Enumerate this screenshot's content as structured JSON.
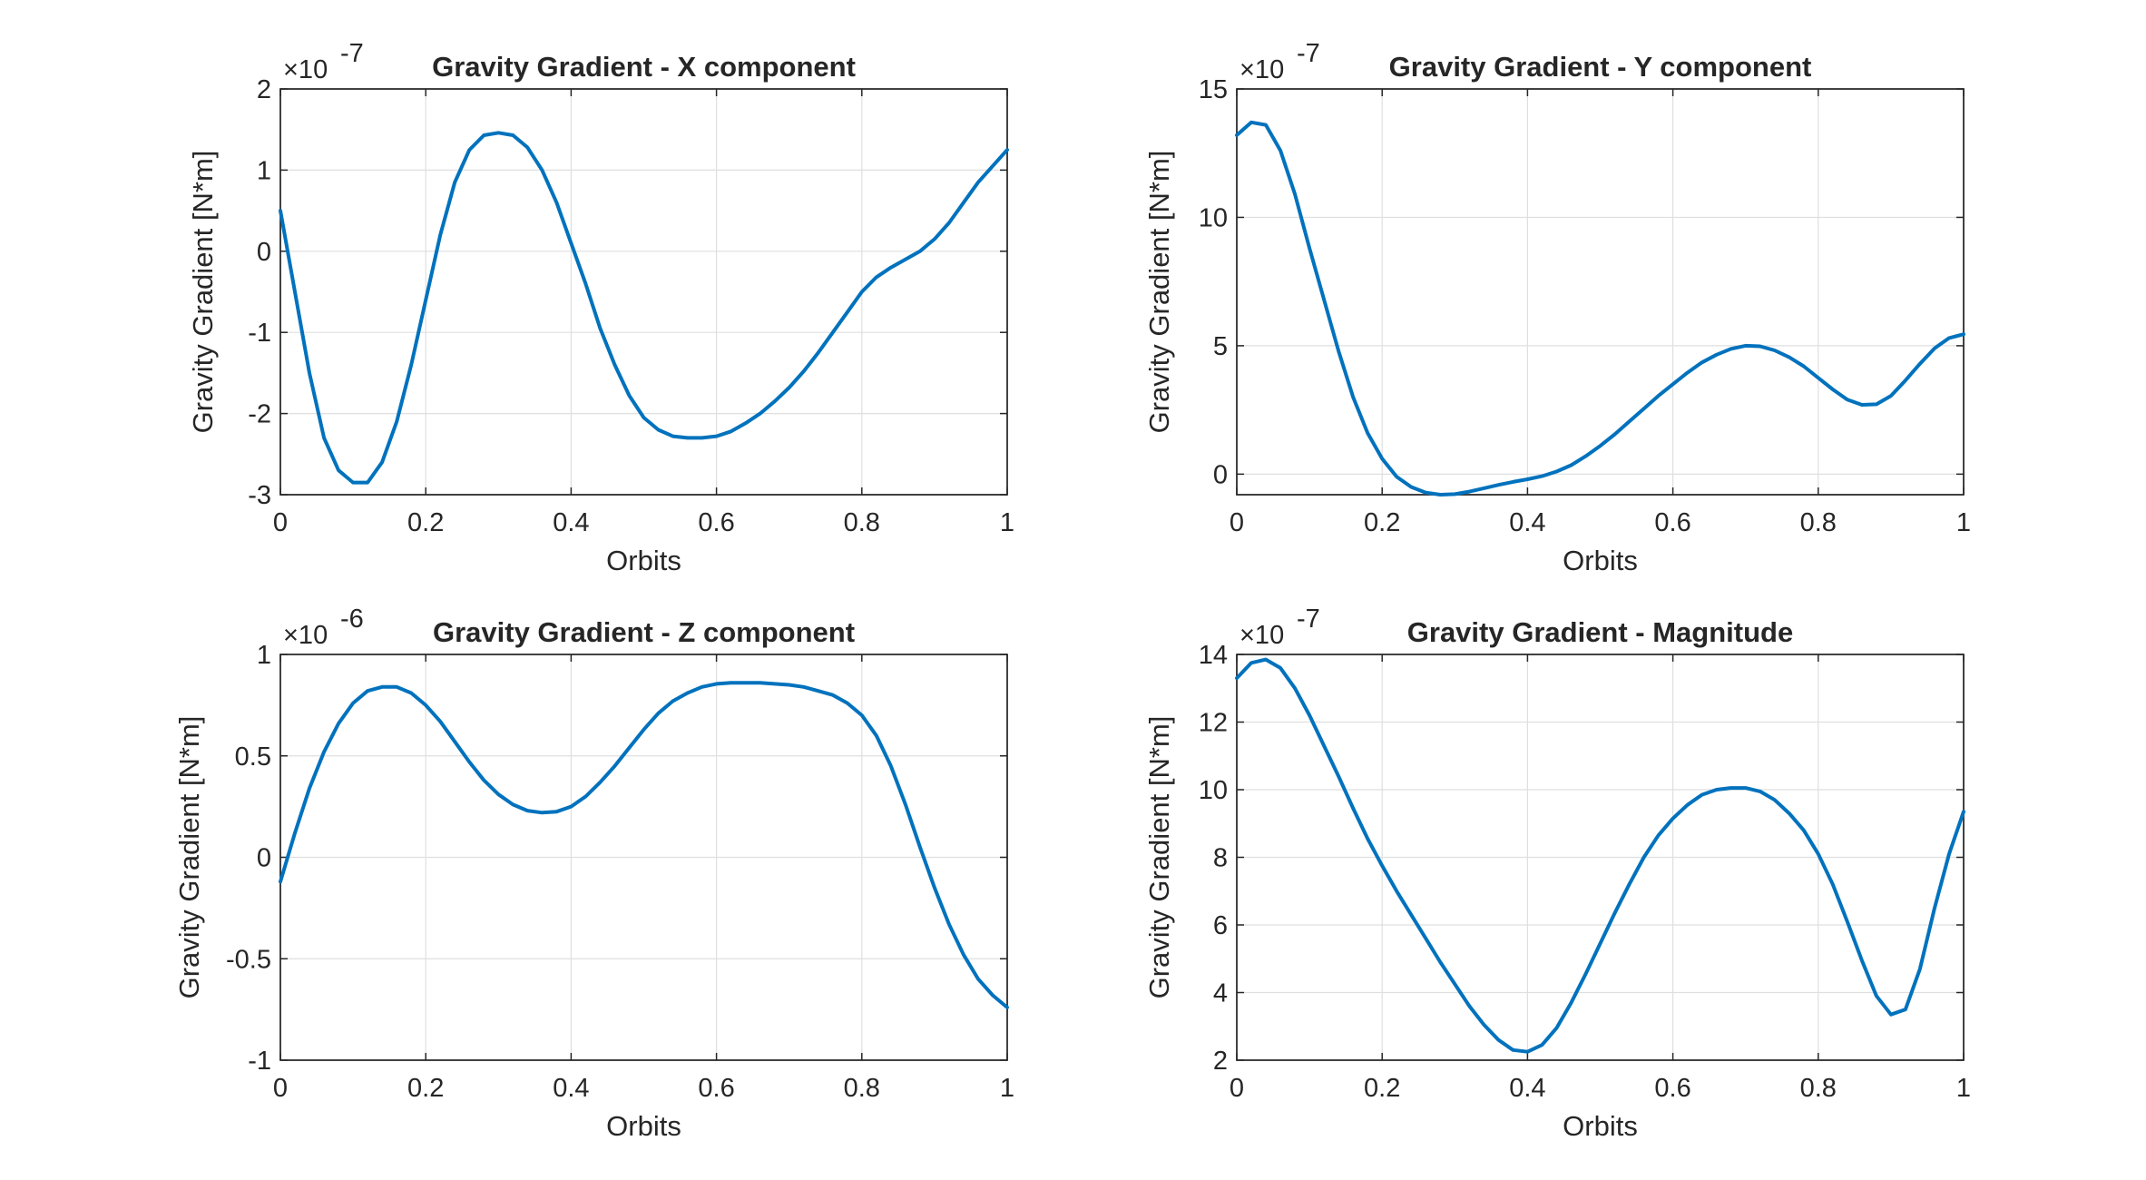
{
  "figure": {
    "background": "#ffffff",
    "line_color": "#0072BD",
    "grid_color": "#dfdfdf",
    "axis_color": "#262626"
  },
  "chart_data": [
    {
      "type": "line",
      "title": "Gravity Gradient - X component",
      "xlabel": "Orbits",
      "ylabel": "Gravity Gradient [N*m]",
      "exponent_label": "×10",
      "exponent_power": "-7",
      "xlim": [
        0,
        1
      ],
      "ylim": [
        -3,
        2
      ],
      "xticks": [
        0,
        0.2,
        0.4,
        0.6,
        0.8,
        1
      ],
      "xtick_labels": [
        "0",
        "0.2",
        "0.4",
        "0.6",
        "0.8",
        "1"
      ],
      "yticks": [
        -3,
        -2,
        -1,
        0,
        1,
        2
      ],
      "ytick_labels": [
        "-3",
        "-2",
        "-1",
        "0",
        "1",
        "2"
      ],
      "grid": true,
      "series": [
        {
          "x": [
            0,
            0.02,
            0.04,
            0.06,
            0.08,
            0.1,
            0.12,
            0.14,
            0.16,
            0.18,
            0.2,
            0.22,
            0.24,
            0.26,
            0.28,
            0.3,
            0.32,
            0.34,
            0.36,
            0.38,
            0.4,
            0.42,
            0.44,
            0.46,
            0.48,
            0.5,
            0.52,
            0.54,
            0.56,
            0.58,
            0.6,
            0.62,
            0.64,
            0.66,
            0.68,
            0.7,
            0.72,
            0.74,
            0.76,
            0.78,
            0.8,
            0.82,
            0.84,
            0.86,
            0.88,
            0.9,
            0.92,
            0.94,
            0.96,
            0.98,
            1.0
          ],
          "y": [
            0.5,
            -0.5,
            -1.5,
            -2.3,
            -2.7,
            -2.85,
            -2.85,
            -2.6,
            -2.1,
            -1.4,
            -0.6,
            0.2,
            0.85,
            1.25,
            1.43,
            1.46,
            1.43,
            1.28,
            1.0,
            0.6,
            0.1,
            -0.4,
            -0.95,
            -1.4,
            -1.78,
            -2.05,
            -2.2,
            -2.28,
            -2.3,
            -2.3,
            -2.28,
            -2.22,
            -2.12,
            -2.0,
            -1.85,
            -1.68,
            -1.48,
            -1.25,
            -1.0,
            -0.75,
            -0.5,
            -0.32,
            -0.2,
            -0.1,
            0.0,
            0.15,
            0.35,
            0.6,
            0.85,
            1.05,
            1.25
          ]
        }
      ]
    },
    {
      "type": "line",
      "title": "Gravity Gradient - Y component",
      "xlabel": "Orbits",
      "ylabel": "Gravity Gradient [N*m]",
      "exponent_label": "×10",
      "exponent_power": "-7",
      "xlim": [
        0,
        1
      ],
      "ylim": [
        -0.8,
        15
      ],
      "xticks": [
        0,
        0.2,
        0.4,
        0.6,
        0.8,
        1
      ],
      "xtick_labels": [
        "0",
        "0.2",
        "0.4",
        "0.6",
        "0.8",
        "1"
      ],
      "yticks": [
        0,
        5,
        10,
        15
      ],
      "ytick_labels": [
        "0",
        "5",
        "10",
        "15"
      ],
      "grid": true,
      "series": [
        {
          "x": [
            0,
            0.02,
            0.04,
            0.06,
            0.08,
            0.1,
            0.12,
            0.14,
            0.16,
            0.18,
            0.2,
            0.22,
            0.24,
            0.26,
            0.28,
            0.3,
            0.32,
            0.34,
            0.36,
            0.38,
            0.4,
            0.42,
            0.44,
            0.46,
            0.48,
            0.5,
            0.52,
            0.54,
            0.56,
            0.58,
            0.6,
            0.62,
            0.64,
            0.66,
            0.68,
            0.7,
            0.72,
            0.74,
            0.76,
            0.78,
            0.8,
            0.82,
            0.84,
            0.86,
            0.88,
            0.9,
            0.92,
            0.94,
            0.96,
            0.98,
            1.0
          ],
          "y": [
            13.2,
            13.7,
            13.6,
            12.6,
            10.9,
            8.8,
            6.8,
            4.8,
            3.0,
            1.6,
            0.6,
            -0.1,
            -0.5,
            -0.72,
            -0.8,
            -0.78,
            -0.68,
            -0.55,
            -0.42,
            -0.3,
            -0.2,
            -0.08,
            0.1,
            0.35,
            0.7,
            1.1,
            1.55,
            2.05,
            2.55,
            3.05,
            3.5,
            3.95,
            4.35,
            4.65,
            4.88,
            5.0,
            4.98,
            4.82,
            4.55,
            4.2,
            3.75,
            3.3,
            2.9,
            2.7,
            2.72,
            3.05,
            3.65,
            4.3,
            4.9,
            5.3,
            5.45
          ]
        }
      ]
    },
    {
      "type": "line",
      "title": "Gravity Gradient - Z component",
      "xlabel": "Orbits",
      "ylabel": "Gravity Gradient [N*m]",
      "exponent_label": "×10",
      "exponent_power": "-6",
      "xlim": [
        0,
        1
      ],
      "ylim": [
        -1,
        1
      ],
      "xticks": [
        0,
        0.2,
        0.4,
        0.6,
        0.8,
        1
      ],
      "xtick_labels": [
        "0",
        "0.2",
        "0.4",
        "0.6",
        "0.8",
        "1"
      ],
      "yticks": [
        -1,
        -0.5,
        0,
        0.5,
        1
      ],
      "ytick_labels": [
        "-1",
        "-0.5",
        "0",
        "0.5",
        "1"
      ],
      "grid": true,
      "series": [
        {
          "x": [
            0,
            0.02,
            0.04,
            0.06,
            0.08,
            0.1,
            0.12,
            0.14,
            0.16,
            0.18,
            0.2,
            0.22,
            0.24,
            0.26,
            0.28,
            0.3,
            0.32,
            0.34,
            0.36,
            0.38,
            0.4,
            0.42,
            0.44,
            0.46,
            0.48,
            0.5,
            0.52,
            0.54,
            0.56,
            0.58,
            0.6,
            0.62,
            0.64,
            0.66,
            0.68,
            0.7,
            0.72,
            0.74,
            0.76,
            0.78,
            0.8,
            0.82,
            0.84,
            0.86,
            0.88,
            0.9,
            0.92,
            0.94,
            0.96,
            0.98,
            1.0
          ],
          "y": [
            -0.12,
            0.12,
            0.34,
            0.52,
            0.66,
            0.76,
            0.82,
            0.84,
            0.84,
            0.81,
            0.75,
            0.67,
            0.57,
            0.47,
            0.38,
            0.31,
            0.26,
            0.23,
            0.22,
            0.225,
            0.25,
            0.3,
            0.37,
            0.45,
            0.54,
            0.63,
            0.71,
            0.77,
            0.81,
            0.84,
            0.855,
            0.86,
            0.86,
            0.86,
            0.855,
            0.85,
            0.84,
            0.82,
            0.8,
            0.76,
            0.7,
            0.6,
            0.45,
            0.26,
            0.05,
            -0.15,
            -0.33,
            -0.48,
            -0.6,
            -0.68,
            -0.74
          ]
        }
      ]
    },
    {
      "type": "line",
      "title": "Gravity Gradient - Magnitude",
      "xlabel": "Orbits",
      "ylabel": "Gravity Gradient [N*m]",
      "exponent_label": "×10",
      "exponent_power": "-7",
      "xlim": [
        0,
        1
      ],
      "ylim": [
        2,
        14
      ],
      "xticks": [
        0,
        0.2,
        0.4,
        0.6,
        0.8,
        1
      ],
      "xtick_labels": [
        "0",
        "0.2",
        "0.4",
        "0.6",
        "0.8",
        "1"
      ],
      "yticks": [
        2,
        4,
        6,
        8,
        10,
        12,
        14
      ],
      "ytick_labels": [
        "2",
        "4",
        "6",
        "8",
        "10",
        "12",
        "14"
      ],
      "grid": true,
      "series": [
        {
          "x": [
            0,
            0.02,
            0.04,
            0.06,
            0.08,
            0.1,
            0.12,
            0.14,
            0.16,
            0.18,
            0.2,
            0.22,
            0.24,
            0.26,
            0.28,
            0.3,
            0.32,
            0.34,
            0.36,
            0.38,
            0.4,
            0.42,
            0.44,
            0.46,
            0.48,
            0.5,
            0.52,
            0.54,
            0.56,
            0.58,
            0.6,
            0.62,
            0.64,
            0.66,
            0.68,
            0.7,
            0.72,
            0.74,
            0.76,
            0.78,
            0.8,
            0.82,
            0.84,
            0.86,
            0.88,
            0.9,
            0.92,
            0.94,
            0.96,
            0.98,
            1.0
          ],
          "y": [
            13.3,
            13.75,
            13.85,
            13.6,
            13.0,
            12.2,
            11.3,
            10.4,
            9.45,
            8.55,
            7.75,
            7.0,
            6.3,
            5.6,
            4.9,
            4.25,
            3.6,
            3.05,
            2.6,
            2.3,
            2.25,
            2.45,
            2.95,
            3.7,
            4.55,
            5.45,
            6.35,
            7.2,
            8.0,
            8.65,
            9.15,
            9.55,
            9.85,
            10.0,
            10.05,
            10.05,
            9.95,
            9.7,
            9.3,
            8.8,
            8.1,
            7.2,
            6.1,
            4.95,
            3.9,
            3.35,
            3.5,
            4.7,
            6.5,
            8.1,
            9.35
          ]
        }
      ]
    }
  ]
}
